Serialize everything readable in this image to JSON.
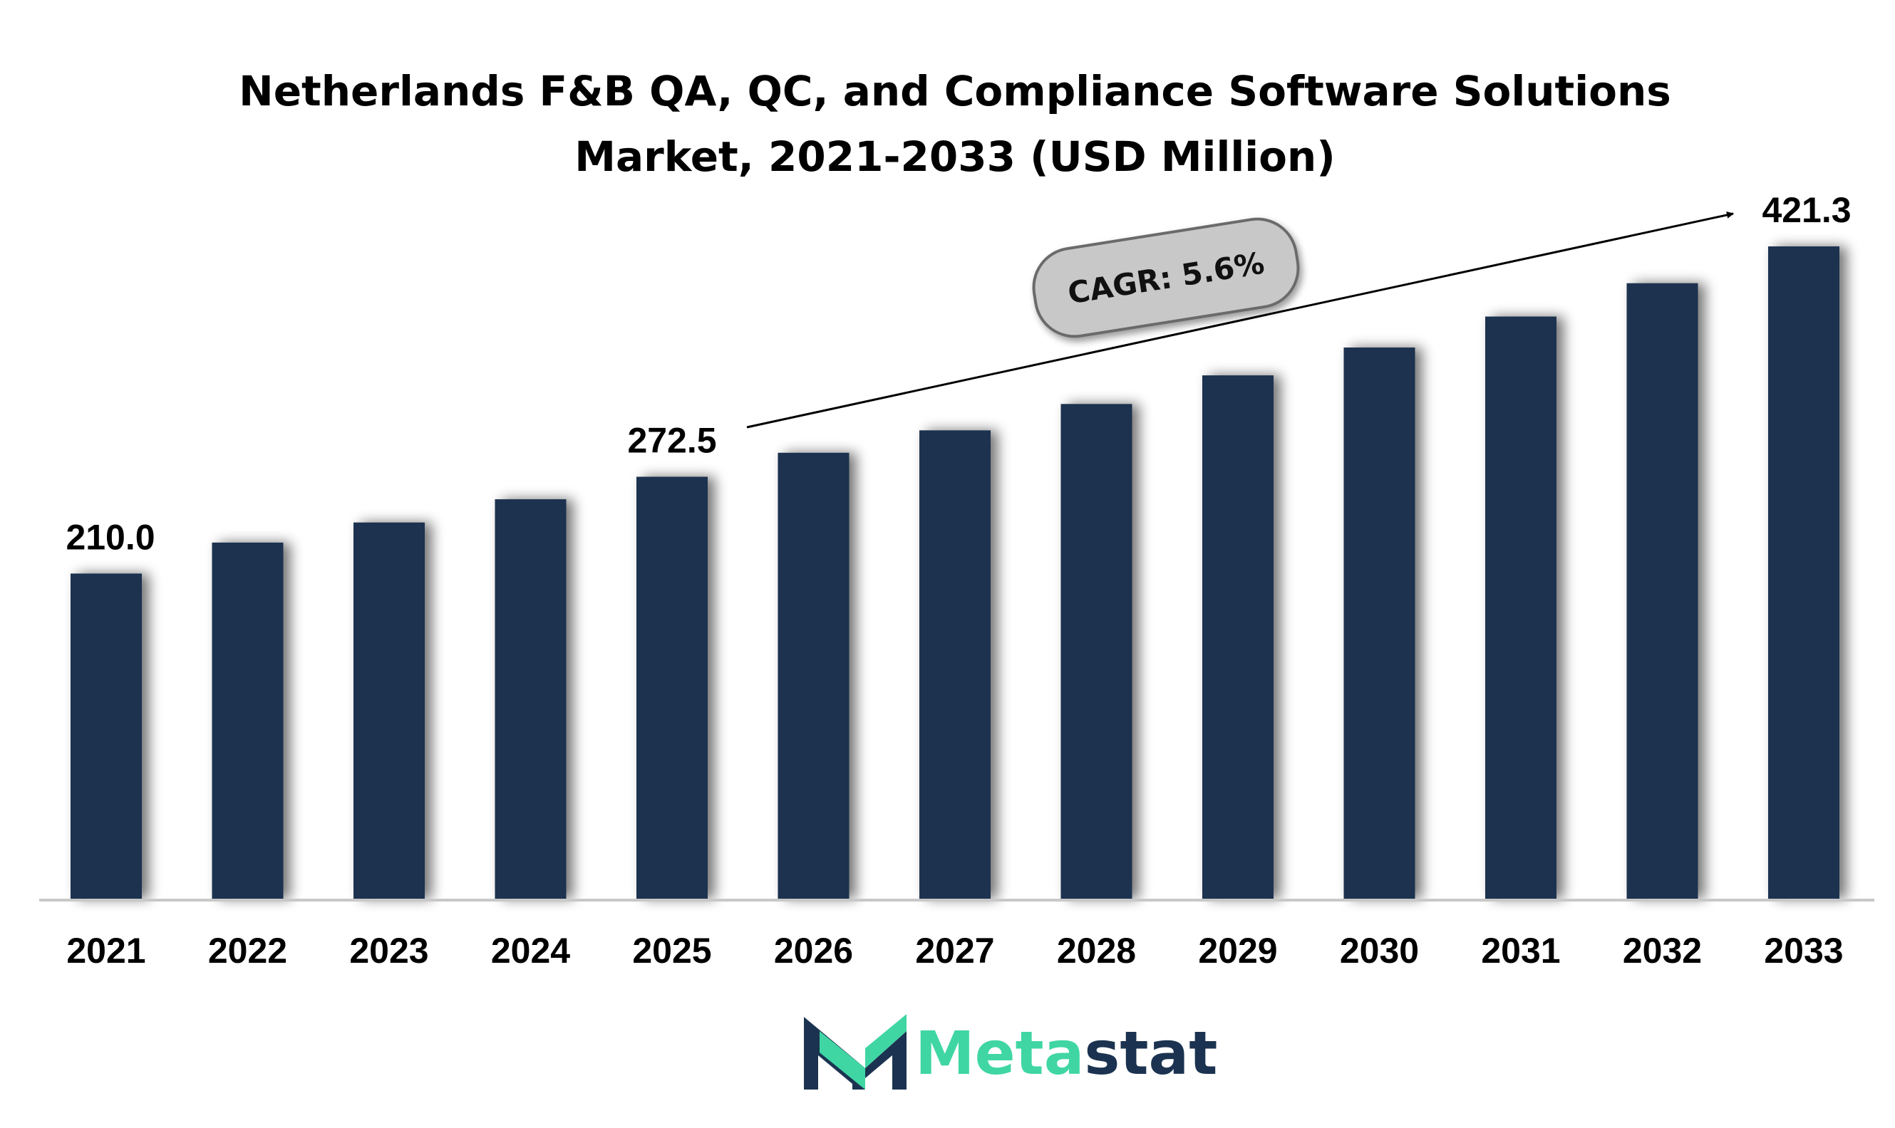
{
  "chart_data": {
    "type": "bar",
    "title_lines": [
      "Netherlands F&B QA, QC, and Compliance Software Solutions",
      "Market, 2021-2033 (USD Million)"
    ],
    "categories": [
      "2021",
      "2022",
      "2023",
      "2024",
      "2025",
      "2026",
      "2027",
      "2028",
      "2029",
      "2030",
      "2031",
      "2032",
      "2033"
    ],
    "values": [
      210.0,
      230.0,
      243.0,
      258.0,
      272.5,
      288.0,
      302.5,
      319.5,
      338.0,
      356.0,
      376.0,
      397.5,
      421.3
    ],
    "data_labels": [
      {
        "index": 0,
        "text": "210.0"
      },
      {
        "index": 4,
        "text": "272.5"
      },
      {
        "index": 12,
        "text": "421.3"
      }
    ],
    "annotation": "CAGR: 5.6%",
    "xlabel": "",
    "ylabel": "",
    "ylim": [
      0,
      421.3
    ],
    "grid": false,
    "colors": {
      "bar": "#1b3350",
      "bar_shadow": "#9a9a9a",
      "axis": "#c8c8c8",
      "cagr_fill": "#c8c8c8",
      "cagr_stroke": "#6b6b6b"
    }
  },
  "logo": {
    "text_part1": "Meta",
    "text_part2": "stat",
    "color_part1": "#3fd6a4",
    "color_part2": "#1b3350",
    "icon": "metastat-m-logo-icon"
  }
}
